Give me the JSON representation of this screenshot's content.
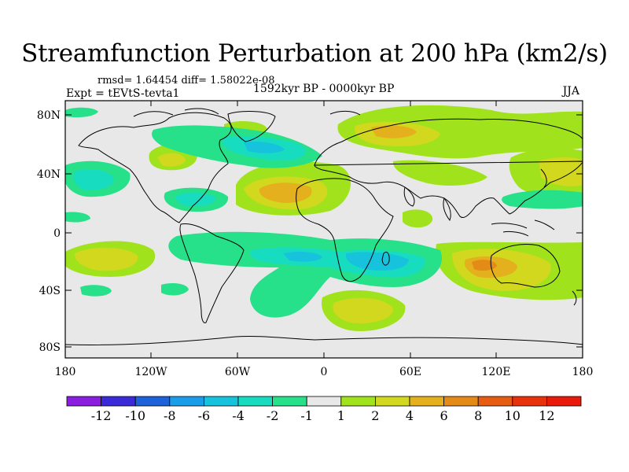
{
  "title": "Streamfunction Perturbation at 200 hPa (km2/s)",
  "stats": "rmsd= 1.64454   diff= 1.58022e-08",
  "expt": "Expt = tEVtS-tevta1",
  "period": "1592kyr BP - 0000kyr BP",
  "season": "JJA",
  "map": {
    "lat_ticks": [
      "80N",
      "40N",
      "0",
      "40S",
      "80S"
    ],
    "lon_ticks": [
      "180",
      "120W",
      "60W",
      "0",
      "60E",
      "120E",
      "180"
    ]
  },
  "colorbar": {
    "labels": [
      "-12",
      "-10",
      "-8",
      "-6",
      "-4",
      "-2",
      "-1",
      "1",
      "2",
      "4",
      "6",
      "8",
      "10",
      "12"
    ],
    "colors": [
      "#8a1de0",
      "#3a2ad8",
      "#1d62d8",
      "#1a9ee8",
      "#17c3dc",
      "#17dcc0",
      "#26e08a",
      "#e8e8e8",
      "#a0e21c",
      "#d2d81e",
      "#e4b01e",
      "#e48a16",
      "#e65c10",
      "#e8320e",
      "#e81a0a"
    ]
  }
}
